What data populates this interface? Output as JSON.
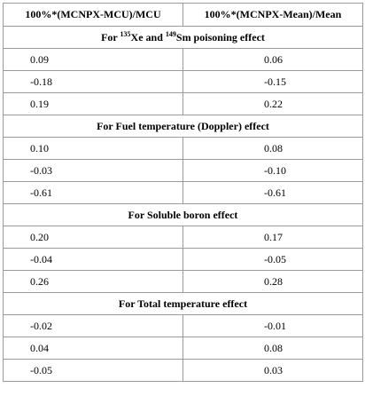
{
  "table": {
    "headers": [
      "100%*(MCNPX-MCU)/MCU",
      "100%*(MCNPX-Mean)/Mean"
    ],
    "sections": [
      {
        "title_parts": [
          "For ",
          "135",
          "Xe and ",
          "149",
          "Sm poisoning effect"
        ],
        "rows": [
          [
            "0.09",
            "0.06"
          ],
          [
            "-0.18",
            "-0.15"
          ],
          [
            "0.19",
            "0.22"
          ]
        ]
      },
      {
        "title": "For Fuel temperature (Doppler) effect",
        "rows": [
          [
            "0.10",
            "0.08"
          ],
          [
            "-0.03",
            "-0.10"
          ],
          [
            "-0.61",
            "-0.61"
          ]
        ]
      },
      {
        "title": "For Soluble boron effect",
        "rows": [
          [
            "0.20",
            "0.17"
          ],
          [
            "-0.04",
            "-0.05"
          ],
          [
            "0.26",
            "0.28"
          ]
        ]
      },
      {
        "title": "For Total temperature effect",
        "rows": [
          [
            "-0.02",
            "-0.01"
          ],
          [
            "0.04",
            "0.08"
          ],
          [
            "-0.05",
            "0.03"
          ]
        ]
      }
    ]
  }
}
